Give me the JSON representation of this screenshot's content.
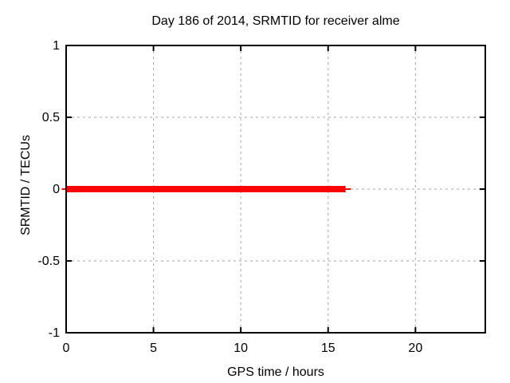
{
  "chart_data": {
    "type": "line",
    "title": "Day 186 of 2014, SRMTID for receiver alme",
    "xlabel": "GPS time / hours",
    "ylabel": "SRMTID / TECUs",
    "xlim": [
      0,
      24
    ],
    "ylim": [
      -1,
      1
    ],
    "xticks": [
      0,
      5,
      10,
      15,
      20
    ],
    "yticks": [
      -1,
      -0.5,
      0,
      0.5,
      1
    ],
    "grid": true,
    "grid_style": "dashed",
    "legend_position": "none",
    "series": [
      {
        "name": "SRMTID",
        "color": "#ff0000",
        "linewidth": 8,
        "x": [
          0,
          16
        ],
        "y": [
          0,
          0
        ]
      }
    ],
    "thin_segments": [
      {
        "color": "#ff0000",
        "linewidth": 2,
        "x": [
          -0.25,
          0
        ],
        "y": [
          0,
          0
        ]
      },
      {
        "color": "#ff0000",
        "linewidth": 2,
        "x": [
          16,
          16.3
        ],
        "y": [
          0,
          0
        ]
      }
    ],
    "colors": {
      "background": "#ffffff",
      "axis": "#000000",
      "grid": "#a6a6a6",
      "series": "#ff0000"
    }
  }
}
